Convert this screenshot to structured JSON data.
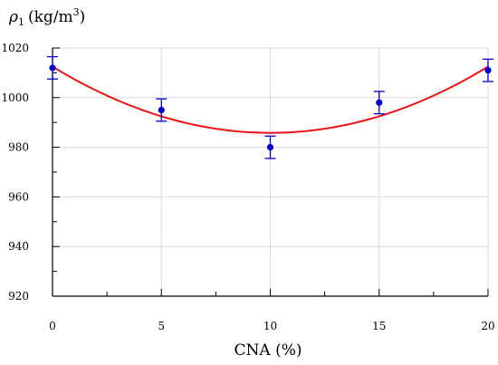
{
  "chart_data": {
    "type": "scatter",
    "title": "",
    "xlabel": "CNA (%)",
    "ylabel": "ρ₁ (kg/m³)",
    "ylabel_parts": {
      "symbol": "ρ",
      "subscript": "1",
      "unit": "(kg/m",
      "superscript": "3",
      "close": ")"
    },
    "xlim": [
      0,
      20
    ],
    "ylim": [
      920,
      1020
    ],
    "x_ticks": [
      0,
      5,
      10,
      15,
      20
    ],
    "y_ticks": [
      920,
      940,
      960,
      980,
      1000,
      1020
    ],
    "grid": true,
    "legend": "none",
    "series": [
      {
        "type": "scatter",
        "x": [
          0,
          5,
          10,
          15,
          20
        ],
        "y": [
          1012,
          995,
          980,
          998,
          1011
        ],
        "error": [
          4.5,
          4.5,
          4.5,
          4.5,
          4.5
        ],
        "color": "#0000cc"
      },
      {
        "type": "fit-curve",
        "x": [
          0,
          10,
          20
        ],
        "y": [
          1012.5,
          985.8,
          1012.5
        ],
        "color": "#ee1111"
      }
    ]
  }
}
